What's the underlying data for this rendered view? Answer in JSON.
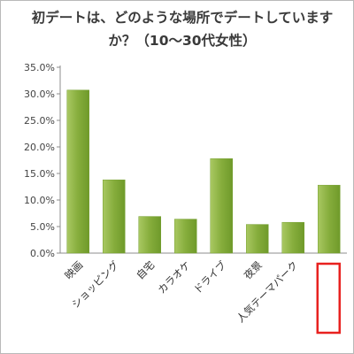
{
  "chart_data": {
    "type": "bar",
    "title": "初デートは、どのような場所でデートしていますか？（10〜30代女性）",
    "categories": [
      "映画",
      "ショッピング",
      "自宅",
      "カラオケ",
      "ドライブ",
      "夜景",
      "人気テーマパーク",
      ""
    ],
    "values": [
      30.7,
      13.8,
      6.9,
      6.4,
      17.8,
      5.4,
      5.8,
      12.8
    ],
    "y_ticks": [
      "0.0%",
      "5.0%",
      "10.0%",
      "15.0%",
      "20.0%",
      "25.0%",
      "30.0%",
      "35.0%"
    ],
    "ylim": [
      0,
      35
    ],
    "grid": false,
    "bar_color": "#86ad3c",
    "highlight": {
      "category_index": 7,
      "color": "#e8211f"
    }
  }
}
